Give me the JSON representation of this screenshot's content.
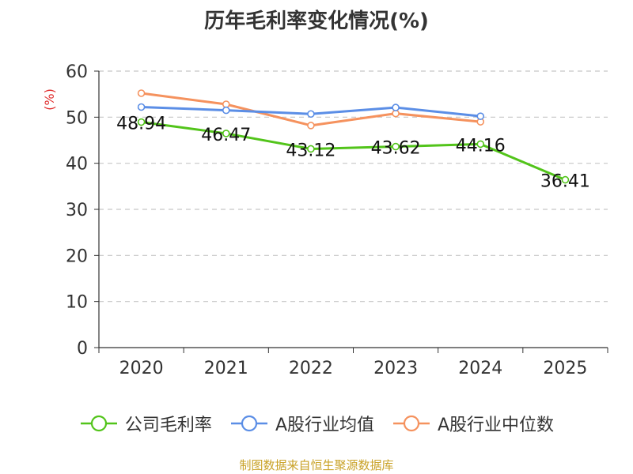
{
  "chart_data": {
    "type": "line",
    "title": "历年毛利率变化情况(%)",
    "ylabel": "(%)",
    "ylim": [
      0,
      60
    ],
    "yticks": [
      0,
      10,
      20,
      30,
      40,
      50,
      60
    ],
    "categories": [
      "2020",
      "2021",
      "2022",
      "2023",
      "2024",
      "2025"
    ],
    "grid": true,
    "legend_position": "bottom",
    "series": [
      {
        "name": "公司毛利率",
        "color": "#52c41a",
        "values": [
          48.94,
          46.47,
          43.12,
          43.62,
          44.16,
          36.41
        ],
        "labels": [
          "48.94",
          "46.47",
          "43.12",
          "43.62",
          "44.16",
          "36.41"
        ]
      },
      {
        "name": "A股行业均值",
        "color": "#5b8ee6",
        "values": [
          52.2,
          51.5,
          50.7,
          52.1,
          50.2,
          null
        ]
      },
      {
        "name": "A股行业中位数",
        "color": "#f5925e",
        "values": [
          55.2,
          52.8,
          48.2,
          50.8,
          49.0,
          null
        ]
      }
    ]
  },
  "source_text": "制图数据来自恒生聚源数据库"
}
